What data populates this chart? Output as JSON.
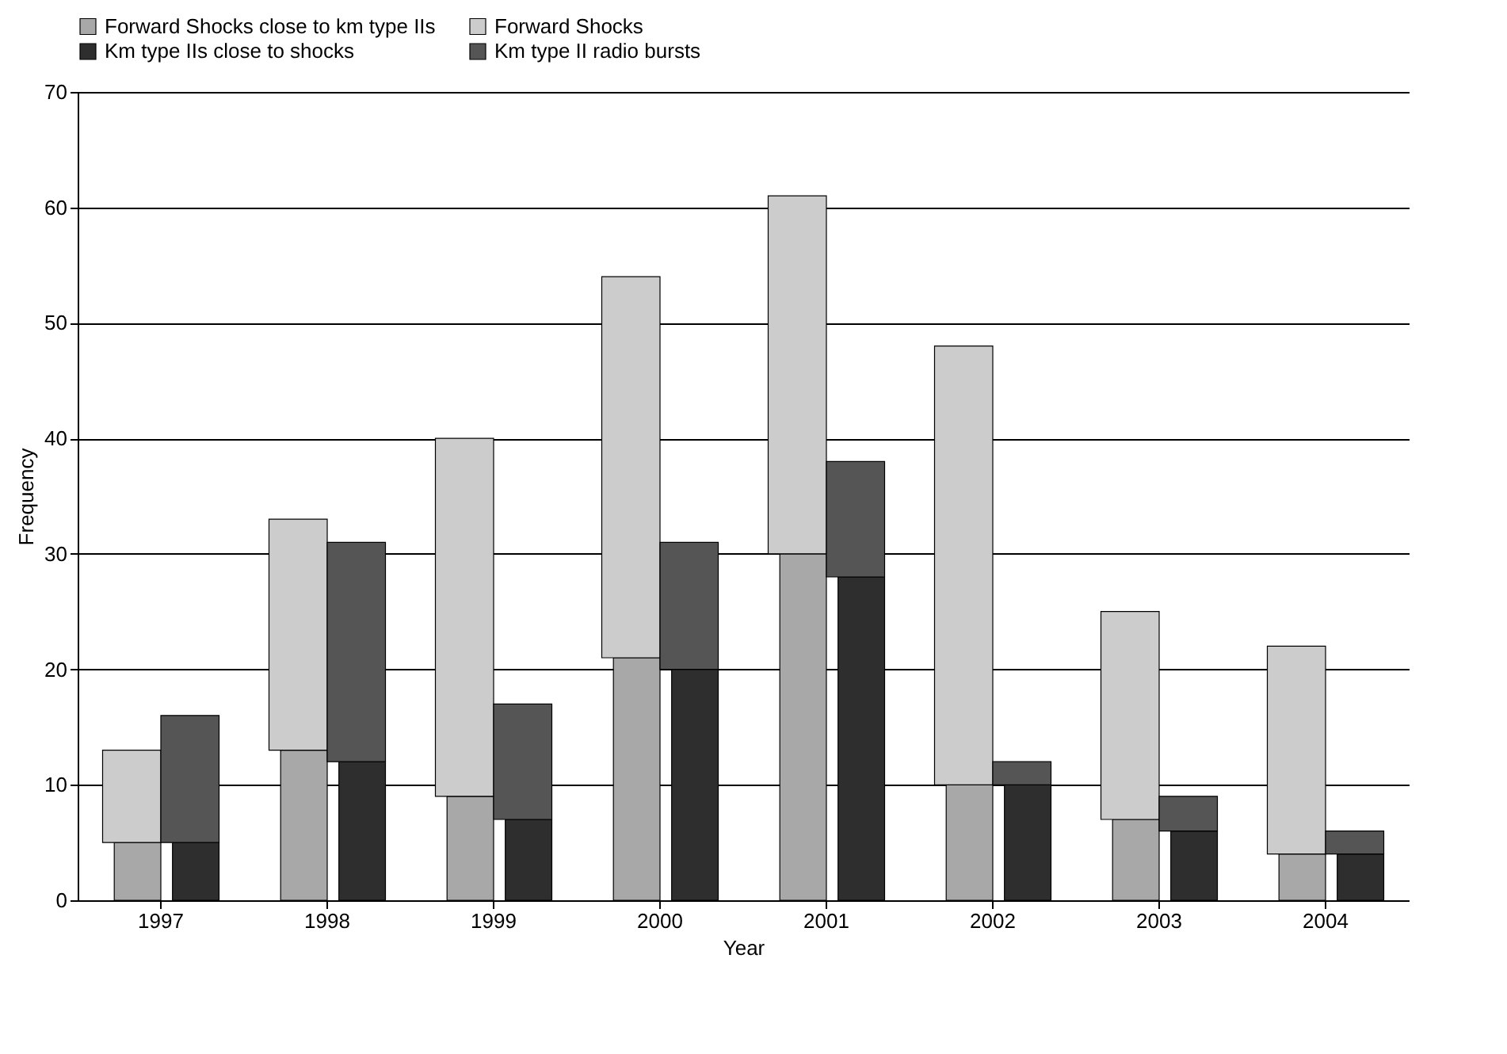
{
  "chart_data": {
    "type": "bar",
    "xlabel": "Year",
    "ylabel": "Frequency",
    "categories": [
      "1997",
      "1998",
      "1999",
      "2000",
      "2001",
      "2002",
      "2003",
      "2004"
    ],
    "series": [
      {
        "name": "Forward Shocks close to km type IIs",
        "color": "#a8a8a8",
        "values": [
          5,
          13,
          9,
          21,
          30,
          10,
          7,
          4
        ]
      },
      {
        "name": "Forward Shocks",
        "color": "#cccccc",
        "base": [
          5,
          13,
          9,
          21,
          30,
          10,
          7,
          4
        ],
        "values": [
          8,
          20,
          31,
          33,
          31,
          38,
          18,
          18
        ]
      },
      {
        "name": "Km type IIs close to shocks",
        "color": "#2e2e2e",
        "values": [
          5,
          12,
          7,
          20,
          28,
          10,
          6,
          4
        ]
      },
      {
        "name": "Km type II radio bursts",
        "color": "#555555",
        "base": [
          5,
          12,
          7,
          20,
          28,
          10,
          6,
          4
        ],
        "values": [
          11,
          19,
          10,
          11,
          10,
          2,
          3,
          2
        ]
      }
    ],
    "ylim": [
      0,
      70
    ],
    "yticks": [
      0,
      10,
      20,
      30,
      40,
      50,
      60,
      70
    ],
    "grid": "y",
    "legend": "top"
  }
}
